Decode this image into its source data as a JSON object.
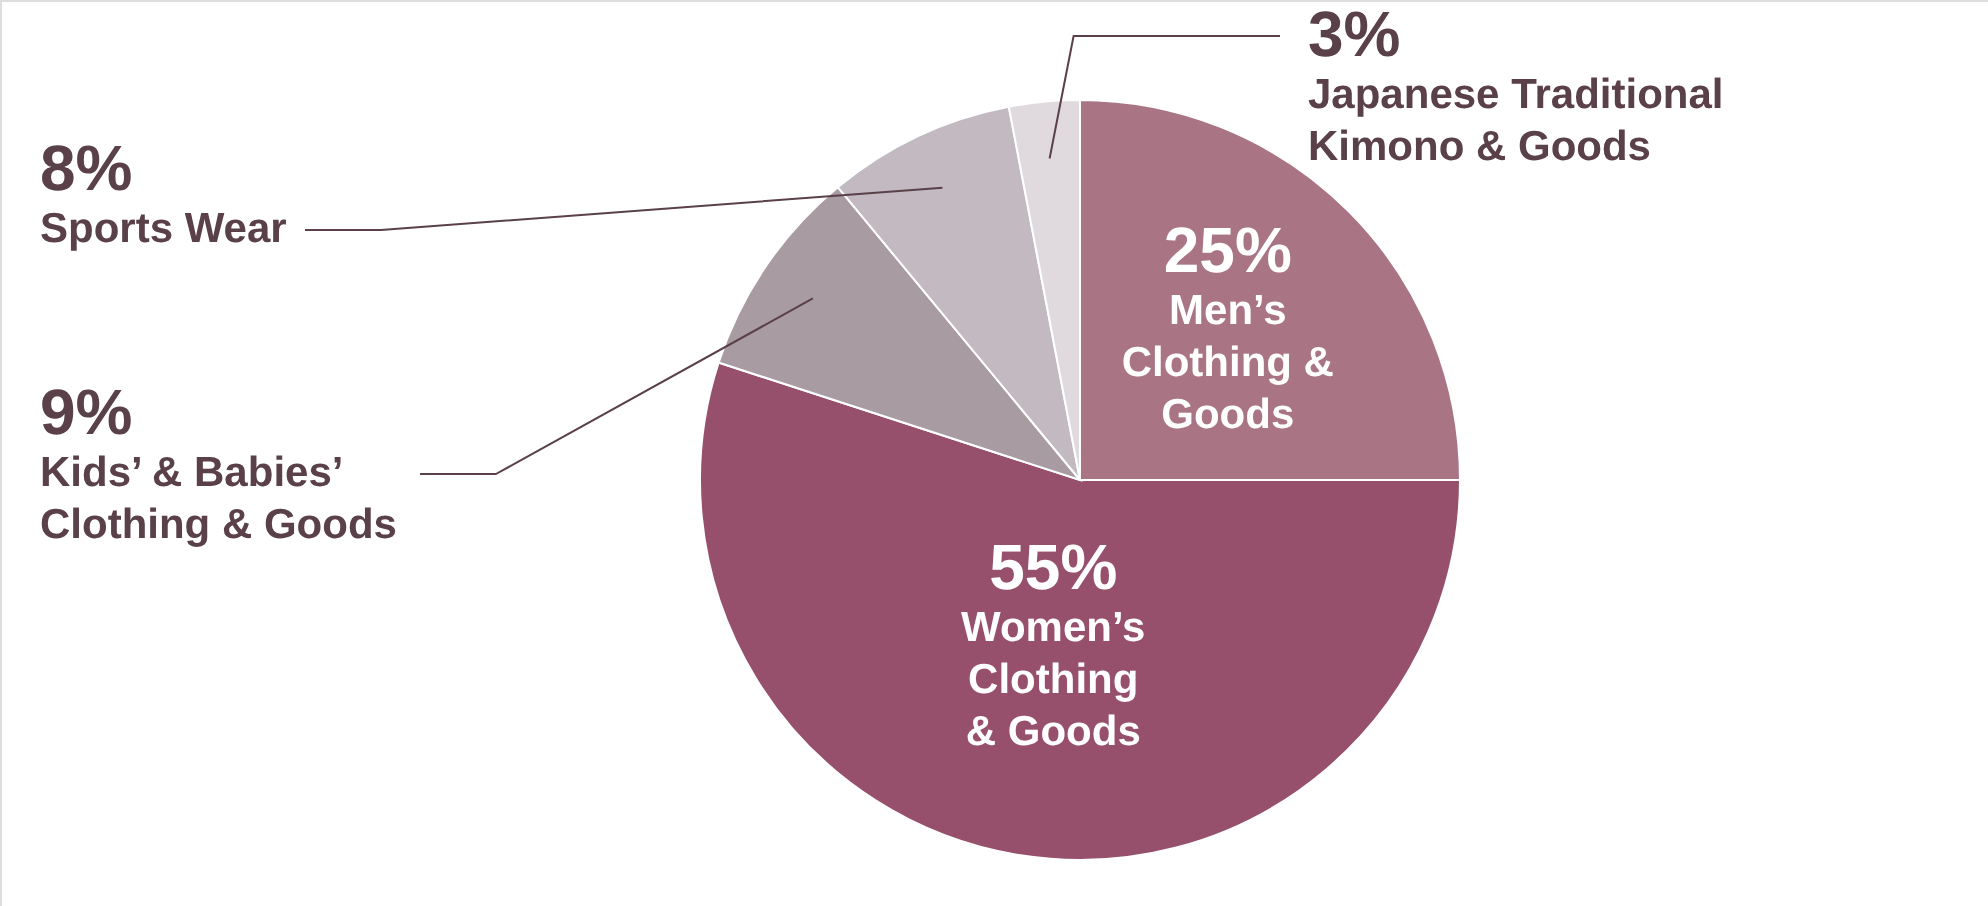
{
  "chart_data": {
    "type": "pie",
    "categories": [
      "Men’s Clothing & Goods",
      "Women’s Clothing & Goods",
      "Kids’ & Babies’ Clothing & Goods",
      "Sports Wear",
      "Japanese Traditional Kimono & Goods"
    ],
    "values": [
      25,
      55,
      9,
      8,
      3
    ],
    "value_labels": [
      "25%",
      "55%",
      "9%",
      "8%",
      "3%"
    ],
    "colors": [
      "#a97585",
      "#97506b",
      "#a89ba1",
      "#c2b9c1",
      "#e0dade"
    ]
  }
}
